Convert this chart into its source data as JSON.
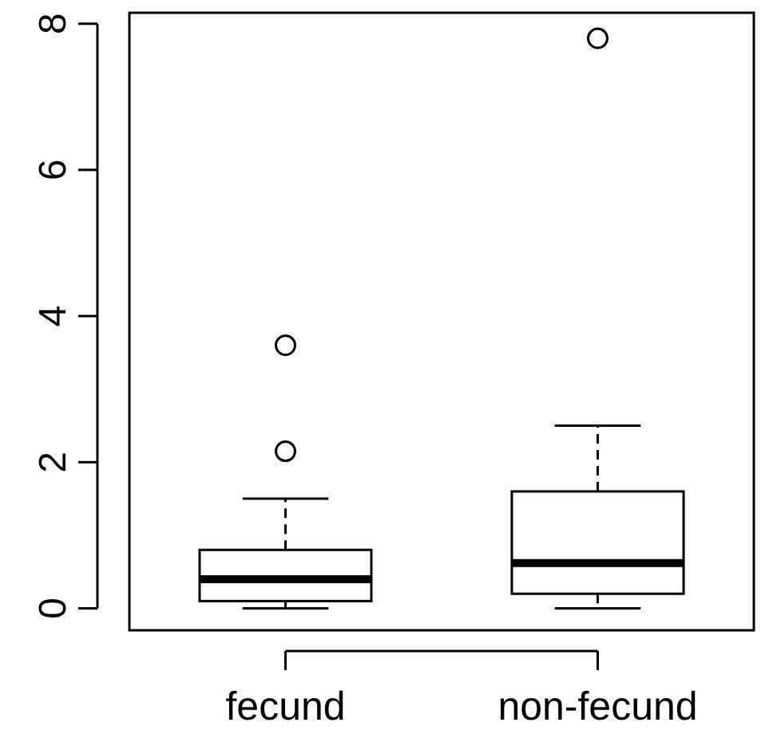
{
  "chart_data": {
    "type": "box",
    "categories": [
      "fecund",
      "non-fecund"
    ],
    "ylim": [
      -0.3,
      8.15
    ],
    "yticks": [
      0,
      2,
      4,
      6,
      8
    ],
    "grid": false,
    "boxes": [
      {
        "low": 0,
        "q1": 0.1,
        "median": 0.4,
        "q3": 0.8,
        "high": 1.5,
        "outliers": [
          2.15,
          3.6
        ]
      },
      {
        "low": 0,
        "q1": 0.2,
        "median": 0.62,
        "q3": 1.6,
        "high": 2.5,
        "outliers": [
          7.8
        ]
      }
    ]
  }
}
